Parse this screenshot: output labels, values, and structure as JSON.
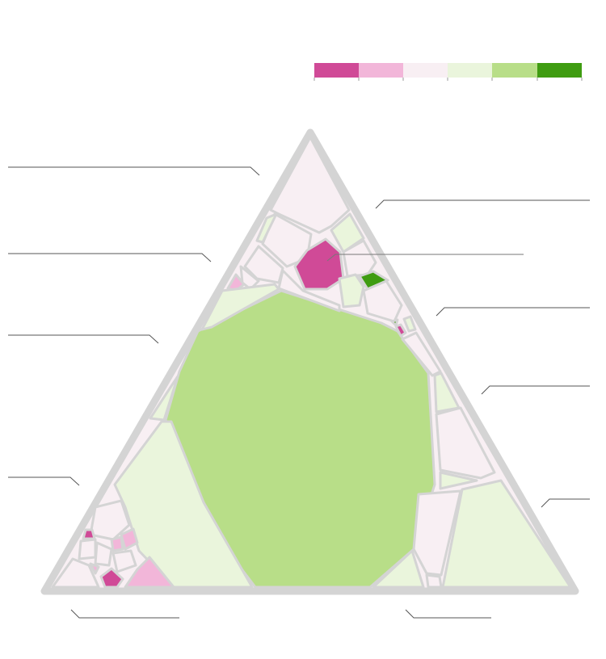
{
  "palette": {
    "strong_pink": "#d04a97",
    "light_pink": "#f2b6d9",
    "pale_pink": "#f8eff3",
    "pale_green": "#eaf5dc",
    "light_green": "#b8de88",
    "strong_green": "#3f9c11",
    "frame": "#d4d4d4"
  },
  "legend": {
    "swatches": [
      "strong_pink",
      "light_pink",
      "pale_pink",
      "pale_green",
      "light_green",
      "strong_green"
    ]
  }
}
